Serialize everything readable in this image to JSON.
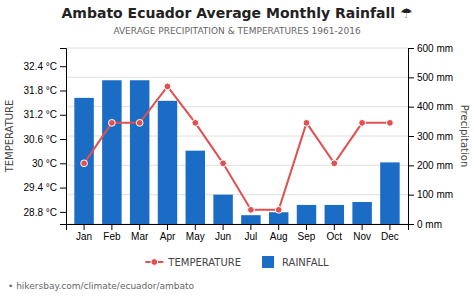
{
  "chart_data": {
    "type": "bar",
    "title": "Ambato Ecuador Average Monthly Rainfall ☂",
    "subtitle": "AVERAGE PRECIPITATION & TEMPERATURES 1961-2016",
    "footer": "• hikersbay.com/climate/ecuador/ambato",
    "categories": [
      "Jan",
      "Feb",
      "Mar",
      "Apr",
      "May",
      "Jun",
      "Jul",
      "Aug",
      "Sep",
      "Oct",
      "Nov",
      "Dec"
    ],
    "series": [
      {
        "name": "TEMPERATURE",
        "type": "line",
        "color": "#e05050",
        "marker": "circle",
        "axis": "y",
        "values": [
          30.0,
          31.0,
          31.0,
          31.9,
          31.0,
          30.0,
          28.85,
          28.85,
          31.0,
          30.0,
          31.0,
          31.0
        ]
      },
      {
        "name": "RAINFALL",
        "type": "bar",
        "color": "#1a6cc4",
        "axis": "y2",
        "values": [
          430,
          490,
          490,
          420,
          250,
          100,
          30,
          40,
          65,
          65,
          75,
          210
        ]
      }
    ],
    "y_label": "TEMPERATURE",
    "y2_label": "Precipitation",
    "ylim": [
      28.5,
      32.85
    ],
    "yticks": [
      {
        "value": 28.8,
        "label": "28.8 °C"
      },
      {
        "value": 29.4,
        "label": "29.4 °C"
      },
      {
        "value": 30.0,
        "label": "30 °C"
      },
      {
        "value": 30.6,
        "label": "30.6 °C"
      },
      {
        "value": 31.2,
        "label": "31.2 °C"
      },
      {
        "value": 31.8,
        "label": "31.8 °C"
      },
      {
        "value": 32.4,
        "label": "32.4 °C"
      }
    ],
    "y2lim": [
      0,
      600
    ],
    "y2ticks": [
      {
        "value": 0,
        "label": "0 mm"
      },
      {
        "value": 100,
        "label": "100 mm"
      },
      {
        "value": 200,
        "label": "200 mm"
      },
      {
        "value": 300,
        "label": "300 mm"
      },
      {
        "value": 400,
        "label": "400 mm"
      },
      {
        "value": 500,
        "label": "500 mm"
      },
      {
        "value": 600,
        "label": "600 mm"
      }
    ],
    "grid": true,
    "legend": "bottom"
  }
}
